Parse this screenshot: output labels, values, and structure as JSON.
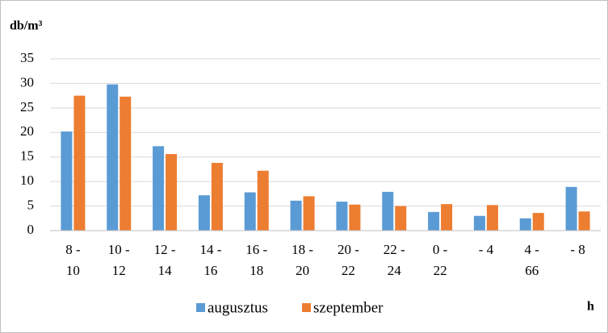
{
  "chart_data": {
    "type": "bar",
    "ylabel": "db/m³",
    "xlabel": "h",
    "categories": [
      "8 - 10",
      "10 - 12",
      "12 - 14",
      "14 - 16",
      "16 - 18",
      "18 - 20",
      "20 - 22",
      "22 - 24",
      "0 - 22",
      "- 4",
      "4 - 66",
      "- 8"
    ],
    "series": [
      {
        "name": "augusztus",
        "color": "#5b9bd5",
        "values": [
          20.2,
          29.8,
          17.2,
          7.2,
          7.8,
          6.1,
          5.9,
          7.9,
          3.8,
          3.0,
          2.5,
          8.9
        ]
      },
      {
        "name": "szeptember",
        "color": "#ed7d31",
        "values": [
          27.5,
          27.3,
          15.6,
          13.8,
          12.2,
          7.0,
          5.3,
          5.0,
          5.4,
          5.2,
          3.6,
          3.9
        ]
      }
    ],
    "ylim": [
      0,
      35
    ],
    "yticks": [
      0,
      5,
      10,
      15,
      20,
      25,
      30,
      35
    ],
    "grid": true,
    "legend": "bottom"
  }
}
